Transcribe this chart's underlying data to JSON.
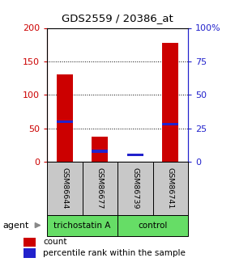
{
  "title": "GDS2559 / 20386_at",
  "samples": [
    "GSM86644",
    "GSM86677",
    "GSM86739",
    "GSM86741"
  ],
  "count_values": [
    130,
    38,
    0,
    178
  ],
  "percentile_values": [
    30,
    8,
    5,
    28
  ],
  "left_ylim": [
    0,
    200
  ],
  "right_ylim": [
    0,
    100
  ],
  "left_yticks": [
    0,
    50,
    100,
    150,
    200
  ],
  "right_yticks": [
    0,
    25,
    50,
    75,
    100
  ],
  "right_yticklabels": [
    "0",
    "25",
    "50",
    "75",
    "100%"
  ],
  "red_color": "#cc0000",
  "blue_color": "#2222cc",
  "agent_label": "agent",
  "legend_count_label": "count",
  "legend_percentile_label": "percentile rank within the sample",
  "group_box_color": "#c8c8c8",
  "green_color": "#66dd66",
  "group_labels": [
    "trichostatin A",
    "control"
  ]
}
